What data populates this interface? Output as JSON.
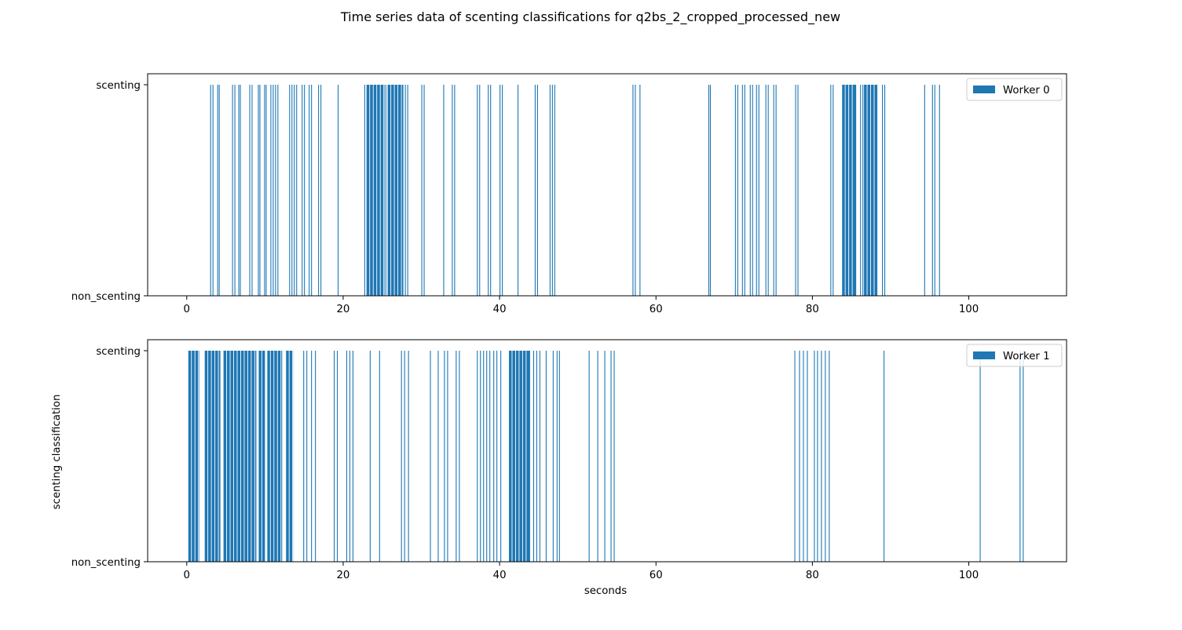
{
  "figure": {
    "title": "Time series data of scenting classifications for q2bs_2_cropped_processed_new",
    "xlabel": "seconds",
    "ylabel": "scenting classification"
  },
  "colors": {
    "bar": "#1f77b4",
    "axes": "#000000",
    "background": "#ffffff"
  },
  "chart_data": [
    {
      "type": "bar",
      "series": [
        {
          "name": "Worker 0"
        }
      ],
      "xlim": [
        -5,
        112.5
      ],
      "xticks": [
        0,
        20,
        40,
        60,
        80,
        100
      ],
      "yticks": [
        "non_scenting",
        "scenting"
      ],
      "legend": "top-right",
      "bar_width": 0.1,
      "scenting_times": [
        3.0,
        3.3,
        3.9,
        4.1,
        5.8,
        6.1,
        6.6,
        6.8,
        8.0,
        8.3,
        9.1,
        9.3,
        9.9,
        10.1,
        10.7,
        11.0,
        11.3,
        11.6,
        13.1,
        13.4,
        13.7,
        14.0,
        14.7,
        15.0,
        15.6,
        15.9,
        16.8,
        17.1,
        19.3,
        22.7,
        23.0,
        25.4,
        25.7,
        26.4,
        26.7,
        27.9,
        28.2,
        30.0,
        30.3,
        32.8,
        33.9,
        34.2,
        37.1,
        37.4,
        38.5,
        38.8,
        40.0,
        40.3,
        42.3,
        44.5,
        44.8,
        46.4,
        46.7,
        47.0,
        57.0,
        57.3,
        57.9,
        66.7,
        66.9,
        70.1,
        70.4,
        71.0,
        71.3,
        72.0,
        72.3,
        72.8,
        73.1,
        74.0,
        74.3,
        75.0,
        75.3,
        77.8,
        78.1,
        82.3,
        82.6,
        84.0,
        84.3,
        84.9,
        85.2,
        86.1,
        86.4,
        87.5,
        87.8,
        88.9,
        89.2,
        94.3,
        95.3,
        95.6,
        96.2
      ],
      "scenting_runs": [
        [
          23.0,
          25.3
        ],
        [
          25.7,
          27.7
        ],
        [
          83.8,
          85.6
        ],
        [
          86.6,
          88.4
        ]
      ]
    },
    {
      "type": "bar",
      "series": [
        {
          "name": "Worker 1"
        }
      ],
      "xlim": [
        -5,
        112.5
      ],
      "xticks": [
        0,
        20,
        40,
        60,
        80,
        100
      ],
      "yticks": [
        "non_scenting",
        "scenting"
      ],
      "legend": "top-right",
      "bar_width": 0.1,
      "scenting_times": [
        14.9,
        15.3,
        15.9,
        16.4,
        18.8,
        19.2,
        20.4,
        20.8,
        21.2,
        23.4,
        24.6,
        27.4,
        27.8,
        28.3,
        31.1,
        32.1,
        32.9,
        33.3,
        34.4,
        34.8,
        37.1,
        37.5,
        37.9,
        38.3,
        38.7,
        39.2,
        39.6,
        40.1,
        44.3,
        44.7,
        45.1,
        45.9,
        46.8,
        47.3,
        47.6,
        51.4,
        52.5,
        53.4,
        54.2,
        54.6,
        77.7,
        78.3,
        78.8,
        79.3,
        80.2,
        80.6,
        81.1,
        81.6,
        82.1,
        89.1,
        101.4,
        106.5,
        106.9
      ],
      "scenting_runs": [
        [
          0.2,
          1.6
        ],
        [
          2.3,
          4.3
        ],
        [
          4.7,
          8.9
        ],
        [
          9.2,
          10.0
        ],
        [
          10.3,
          12.2
        ],
        [
          12.7,
          13.6
        ],
        [
          41.2,
          43.9
        ]
      ]
    }
  ]
}
